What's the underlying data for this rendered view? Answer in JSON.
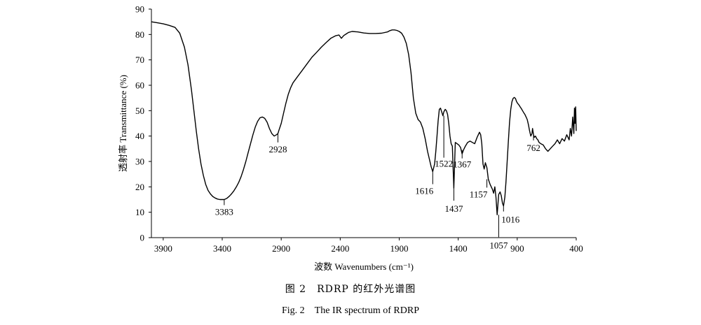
{
  "chart_data": {
    "type": "line",
    "title": "",
    "xlabel": "波数 Wavenumbers (cm⁻¹)",
    "ylabel": "透射率 Transmittance (%)",
    "xlim": [
      4000,
      400
    ],
    "ylim": [
      0,
      90
    ],
    "x_reversed": true,
    "xticks": [
      3900,
      3400,
      2900,
      2400,
      1900,
      1400,
      900,
      400
    ],
    "yticks": [
      0,
      10,
      20,
      30,
      40,
      50,
      60,
      70,
      80,
      90
    ],
    "grid": false,
    "legend": "none",
    "line_color": "#000000",
    "series": [
      {
        "x": [
          4000,
          3950,
          3900,
          3850,
          3800,
          3760,
          3720,
          3690,
          3660,
          3640,
          3620,
          3600,
          3580,
          3560,
          3540,
          3520,
          3500,
          3480,
          3460,
          3440,
          3420,
          3400,
          3383,
          3360,
          3340,
          3320,
          3300,
          3280,
          3260,
          3240,
          3220,
          3200,
          3180,
          3160,
          3140,
          3120,
          3100,
          3080,
          3060,
          3040,
          3020,
          3000,
          2980,
          2960,
          2940,
          2928,
          2920,
          2900,
          2880,
          2860,
          2840,
          2820,
          2800,
          2760,
          2720,
          2680,
          2640,
          2600,
          2560,
          2520,
          2480,
          2440,
          2410,
          2390,
          2370,
          2350,
          2330,
          2300,
          2250,
          2200,
          2150,
          2100,
          2050,
          2000,
          1980,
          1960,
          1940,
          1920,
          1900,
          1880,
          1860,
          1840,
          1820,
          1800,
          1790,
          1780,
          1760,
          1740,
          1720,
          1700,
          1680,
          1660,
          1640,
          1630,
          1616,
          1600,
          1590,
          1580,
          1570,
          1560,
          1550,
          1540,
          1530,
          1522,
          1510,
          1500,
          1490,
          1480,
          1470,
          1460,
          1450,
          1437,
          1425,
          1410,
          1395,
          1380,
          1367,
          1355,
          1340,
          1320,
          1300,
          1280,
          1260,
          1240,
          1230,
          1220,
          1210,
          1200,
          1190,
          1180,
          1170,
          1157,
          1145,
          1130,
          1120,
          1110,
          1100,
          1090,
          1080,
          1070,
          1057,
          1045,
          1035,
          1025,
          1016,
          1005,
          995,
          985,
          975,
          965,
          955,
          945,
          935,
          925,
          915,
          905,
          895,
          885,
          875,
          865,
          855,
          845,
          835,
          825,
          815,
          805,
          795,
          785,
          775,
          770,
          762,
          755,
          745,
          735,
          725,
          715,
          700,
          680,
          660,
          640,
          620,
          600,
          580,
          560,
          540,
          520,
          500,
          480,
          460,
          450,
          440,
          430,
          420,
          415,
          410,
          405,
          400
        ],
        "y": [
          85.0,
          84.6,
          84.2,
          83.6,
          82.8,
          80.5,
          75.0,
          68.0,
          58.0,
          50.0,
          42.0,
          35.0,
          29.0,
          24.5,
          21.0,
          18.6,
          17.2,
          16.2,
          15.6,
          15.2,
          15.0,
          15.0,
          15.0,
          15.5,
          16.3,
          17.3,
          18.5,
          20.0,
          21.8,
          24.0,
          26.8,
          30.0,
          33.5,
          37.0,
          40.5,
          43.5,
          45.8,
          47.2,
          47.5,
          47.0,
          45.5,
          43.0,
          41.0,
          40.0,
          40.5,
          41.0,
          42.2,
          45.0,
          49.0,
          53.0,
          56.5,
          59.0,
          61.0,
          63.5,
          66.0,
          68.5,
          71.0,
          73.0,
          75.0,
          76.8,
          78.5,
          79.5,
          79.8,
          78.5,
          79.6,
          80.2,
          80.8,
          81.2,
          81.0,
          80.6,
          80.4,
          80.4,
          80.5,
          81.0,
          81.5,
          81.8,
          81.8,
          81.6,
          81.2,
          80.5,
          79.0,
          76.5,
          72.0,
          65.0,
          60.0,
          55.0,
          49.0,
          46.5,
          45.5,
          43.0,
          39.0,
          34.0,
          30.0,
          28.0,
          26.0,
          29.0,
          34.0,
          40.0,
          46.0,
          50.5,
          51.0,
          49.5,
          48.0,
          49.5,
          50.5,
          50.0,
          48.5,
          45.0,
          40.0,
          37.0,
          36.0,
          19.5,
          37.5,
          37.0,
          36.5,
          35.5,
          33.0,
          34.5,
          36.0,
          37.5,
          38.0,
          37.5,
          37.0,
          39.5,
          40.5,
          41.5,
          40.5,
          37.0,
          29.0,
          27.0,
          29.5,
          27.5,
          23.0,
          21.0,
          20.0,
          19.0,
          17.5,
          20.0,
          16.0,
          9.0,
          17.0,
          18.0,
          16.5,
          13.5,
          12.5,
          16.0,
          22.0,
          30.0,
          38.0,
          45.5,
          50.5,
          53.5,
          54.8,
          55.2,
          54.8,
          53.5,
          52.8,
          52.2,
          51.5,
          50.8,
          50.0,
          49.2,
          48.5,
          47.5,
          46.5,
          44.5,
          42.0,
          40.0,
          41.0,
          43.0,
          40.5,
          39.5,
          40.0,
          39.0,
          38.5,
          37.5,
          37.0,
          36.5,
          35.0,
          34.0,
          35.0,
          36.0,
          37.0,
          38.5,
          37.0,
          39.0,
          38.0,
          40.5,
          38.5,
          43.0,
          40.0,
          47.5,
          41.0,
          51.0,
          45.0,
          51.5,
          42.0
        ]
      }
    ],
    "annotations": [
      {
        "text": "3383",
        "x": 3383,
        "y": 15.0
      },
      {
        "text": "2928",
        "x": 2928,
        "y": 40.8
      },
      {
        "text": "1616",
        "x": 1616,
        "y": 26.0
      },
      {
        "text": "1522",
        "x": 1522,
        "y": 48.0
      },
      {
        "text": "1367",
        "x": 1367,
        "y": 34.5
      },
      {
        "text": "1437",
        "x": 1437,
        "y": 19.5
      },
      {
        "text": "1157",
        "x": 1157,
        "y": 23.0
      },
      {
        "text": "1057",
        "x": 1057,
        "y": 9.0
      },
      {
        "text": "1016",
        "x": 1016,
        "y": 12.5
      },
      {
        "text": "762",
        "x": 762,
        "y": 40.5
      }
    ]
  },
  "caption": {
    "cn": "图 2　RDRP 的红外光谱图",
    "en": "Fig. 2　The IR spectrum of RDRP"
  }
}
